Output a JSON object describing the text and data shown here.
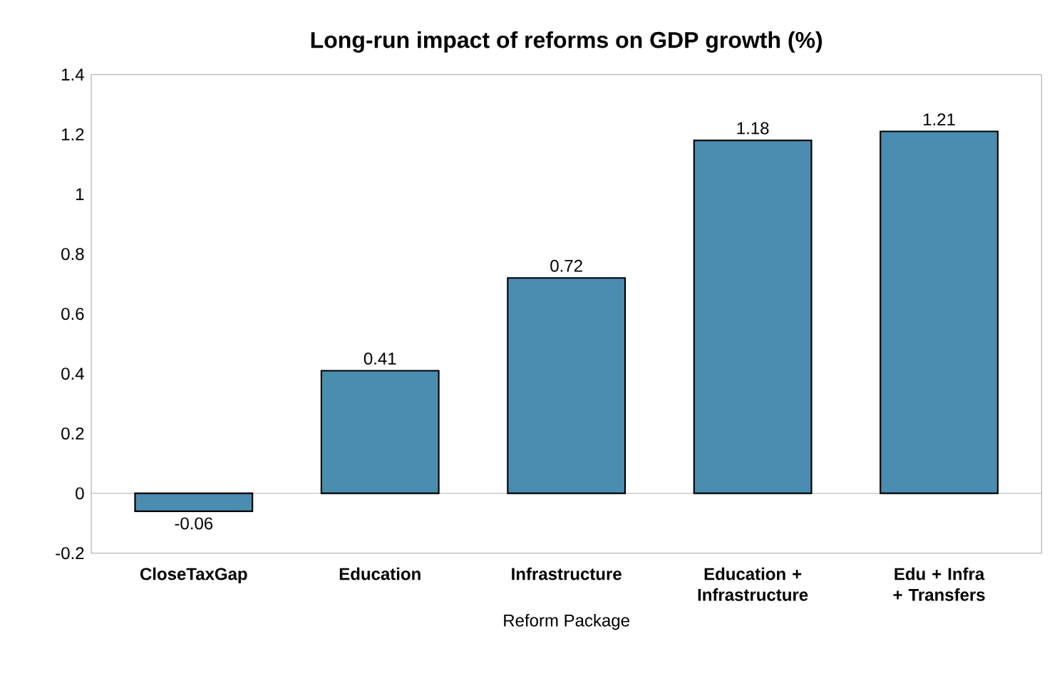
{
  "chart_data": {
    "type": "bar",
    "title": "Long-run impact of reforms on GDP growth (%)",
    "xlabel": "Reform Package",
    "categories": [
      "CloseTaxGap",
      "Education",
      "Infrastructure",
      "Education + Infrastructure",
      "Edu + Infra + Transfers"
    ],
    "values": [
      -0.06,
      0.41,
      0.72,
      1.18,
      1.21
    ],
    "color": "#4a8db0",
    "ylim": [
      -0.2,
      1.4
    ],
    "yticks": [
      -0.2,
      0,
      0.2,
      0.4,
      0.6,
      0.8,
      1,
      1.2,
      1.4
    ],
    "data_labels": true
  }
}
